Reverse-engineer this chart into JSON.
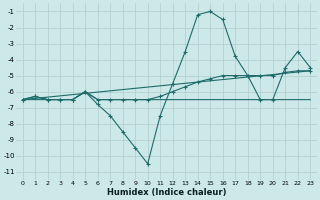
{
  "xlabel": "Humidex (Indice chaleur)",
  "xlim": [
    -0.5,
    23.5
  ],
  "ylim": [
    -11.5,
    -0.5
  ],
  "yticks": [
    -1,
    -2,
    -3,
    -4,
    -5,
    -6,
    -7,
    -8,
    -9,
    -10,
    -11
  ],
  "xticks": [
    0,
    1,
    2,
    3,
    4,
    5,
    6,
    7,
    8,
    9,
    10,
    11,
    12,
    13,
    14,
    15,
    16,
    17,
    18,
    19,
    20,
    21,
    22,
    23
  ],
  "bg_color": "#cce8e8",
  "line_color": "#1f6b6b",
  "grid_color": "#b0cccc",
  "line1_x": [
    0,
    1,
    2,
    3,
    4,
    5,
    6,
    7,
    8,
    9,
    10,
    11,
    12,
    13,
    14,
    15,
    16,
    17,
    18,
    19,
    20,
    21,
    22,
    23
  ],
  "line1_y": [
    -6.5,
    -6.3,
    -6.5,
    -6.5,
    -6.5,
    -6.0,
    -6.8,
    -7.5,
    -8.5,
    -9.5,
    -10.5,
    -7.5,
    -5.5,
    -3.5,
    -1.2,
    -1.0,
    -1.5,
    -3.8,
    -5.0,
    -6.5,
    -6.5,
    -4.5,
    -3.5,
    -4.5
  ],
  "line2_x": [
    0,
    1,
    2,
    3,
    4,
    5,
    6,
    7,
    8,
    9,
    10,
    11,
    12,
    13,
    14,
    15,
    16,
    17,
    18,
    19,
    20,
    21,
    22,
    23
  ],
  "line2_y": [
    -6.5,
    -6.3,
    -6.5,
    -6.5,
    -6.5,
    -6.0,
    -6.5,
    -6.5,
    -6.5,
    -6.5,
    -6.5,
    -6.3,
    -6.0,
    -5.7,
    -5.4,
    -5.2,
    -5.0,
    -5.0,
    -5.0,
    -5.0,
    -5.0,
    -4.8,
    -4.7,
    -4.7
  ],
  "line3_x": [
    0,
    23
  ],
  "line3_y": [
    -6.5,
    -4.7
  ],
  "line4_x": [
    0,
    4,
    5,
    6,
    7,
    8,
    9,
    10,
    11,
    12,
    13,
    14,
    15,
    16,
    17,
    18,
    19,
    20,
    21,
    22,
    23
  ],
  "line4_y": [
    -6.5,
    -6.5,
    -6.0,
    -6.5,
    -6.5,
    -6.5,
    -6.5,
    -6.5,
    -6.5,
    -6.5,
    -6.5,
    -6.5,
    -6.5,
    -6.5,
    -6.5,
    -6.5,
    -6.5,
    -6.5,
    -6.5,
    -6.5,
    -6.5
  ]
}
